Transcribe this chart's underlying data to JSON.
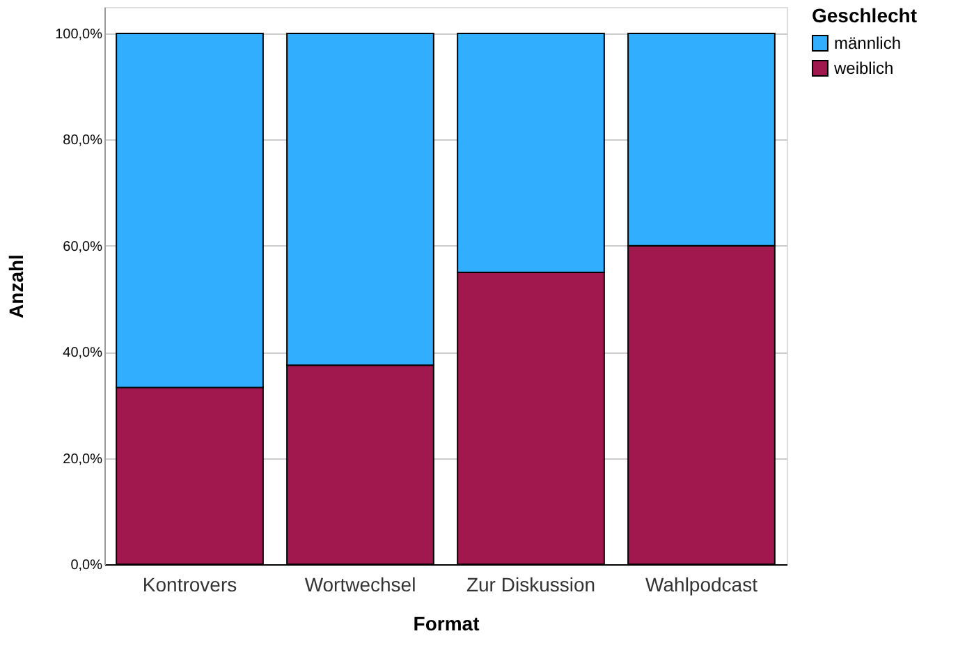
{
  "chart_data": {
    "type": "bar",
    "stacked": true,
    "xlabel": "Format",
    "ylabel": "Anzahl",
    "legend_title": "Geschlecht",
    "legend": "top right",
    "grid": "y",
    "categories": [
      "Kontrovers",
      "Wortwechsel",
      "Zur Diskussion",
      "Wahlpodcast"
    ],
    "series": [
      {
        "name": "weiblich",
        "color": "#a0184e",
        "values": [
          33.3,
          37.5,
          55,
          60
        ]
      },
      {
        "name": "männlich",
        "color": "#31aefe",
        "values": [
          66.7,
          62.5,
          45,
          40
        ]
      }
    ],
    "ylim": [
      0,
      105
    ],
    "yticks": [
      {
        "value": 0,
        "label": "0,0%"
      },
      {
        "value": 20,
        "label": "20,0%"
      },
      {
        "value": 40,
        "label": "40,0%"
      },
      {
        "value": 60,
        "label": "60,0%"
      },
      {
        "value": 80,
        "label": "80,0%"
      },
      {
        "value": 100,
        "label": "100,0%"
      }
    ]
  }
}
